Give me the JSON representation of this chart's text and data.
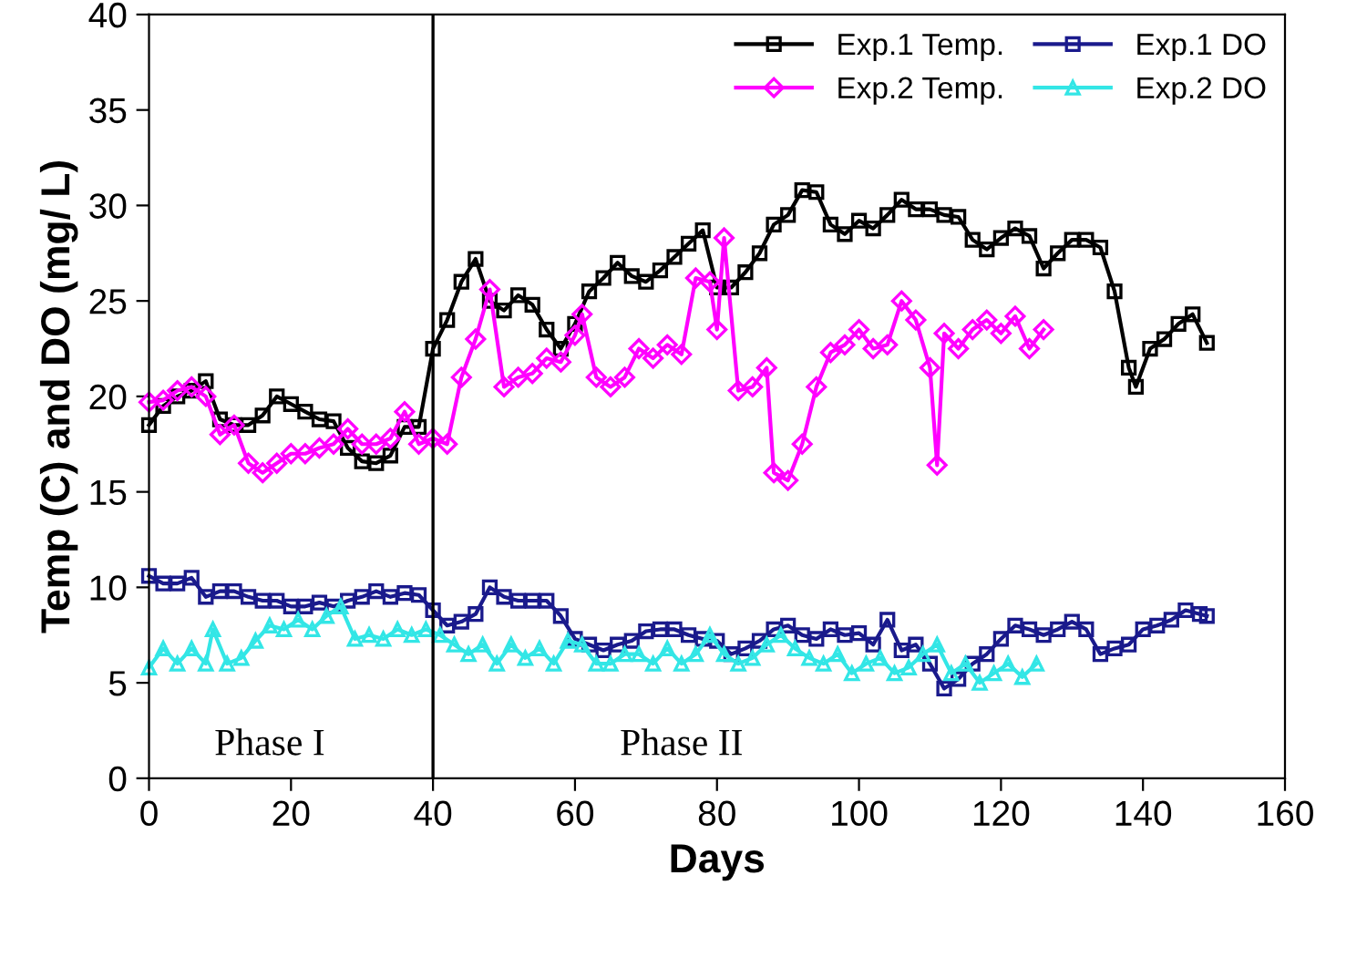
{
  "chart_data": {
    "type": "line",
    "xlabel": "Days",
    "ylabel": "Temp (C) and DO (mg/ L)",
    "xlim": [
      0,
      160
    ],
    "ylim": [
      0,
      40
    ],
    "xticks": [
      0,
      20,
      40,
      60,
      80,
      100,
      120,
      140,
      160
    ],
    "yticks": [
      0,
      5,
      10,
      15,
      20,
      25,
      30,
      35,
      40
    ],
    "grid": false,
    "legend": "top right",
    "ref_lines": [
      {
        "axis": "x",
        "value": 40,
        "color": "#000000"
      }
    ],
    "annotations": [
      "Phase I",
      "Phase II"
    ],
    "series": [
      {
        "name": "Exp.1 Temp.",
        "color": "#000000",
        "marker": "square",
        "x": [
          0,
          2,
          4,
          6,
          8,
          10,
          12,
          14,
          16,
          18,
          20,
          22,
          24,
          26,
          28,
          30,
          32,
          34,
          36,
          38,
          40,
          42,
          44,
          46,
          48,
          50,
          52,
          54,
          56,
          58,
          60,
          62,
          64,
          66,
          68,
          70,
          72,
          74,
          76,
          78,
          80,
          82,
          84,
          86,
          88,
          90,
          92,
          94,
          96,
          98,
          100,
          102,
          104,
          106,
          108,
          110,
          112,
          114,
          116,
          118,
          120,
          122,
          124,
          126,
          128,
          130,
          132,
          134,
          136,
          138,
          139,
          141,
          143,
          145,
          147,
          149
        ],
        "values": [
          18.5,
          19.5,
          20,
          20.3,
          20.8,
          18.8,
          18.5,
          18.5,
          19,
          20,
          19.6,
          19.2,
          18.8,
          18.7,
          17.3,
          16.6,
          16.5,
          16.9,
          18.4,
          18.4,
          22.5,
          24,
          26,
          27.2,
          25,
          24.5,
          25.3,
          24.8,
          23.5,
          22.5,
          23.8,
          25.5,
          26.2,
          27,
          26.3,
          26,
          26.6,
          27.3,
          28,
          28.7,
          25.7,
          25.7,
          26.5,
          27.5,
          29,
          29.5,
          30.8,
          30.7,
          29,
          28.5,
          29.2,
          28.8,
          29.5,
          30.3,
          29.8,
          29.8,
          29.5,
          29.4,
          28.2,
          27.7,
          28.3,
          28.8,
          28.4,
          26.7,
          27.5,
          28.2,
          28.2,
          27.8,
          25.5,
          21.5,
          20.5,
          22.5,
          23,
          23.8,
          24.3,
          22.8
        ]
      },
      {
        "name": "Exp.1 DO",
        "color": "#1a1a8c",
        "marker": "square",
        "x": [
          0,
          2,
          4,
          6,
          8,
          10,
          12,
          14,
          16,
          18,
          20,
          22,
          24,
          26,
          28,
          30,
          32,
          34,
          36,
          38,
          40,
          42,
          44,
          46,
          48,
          50,
          52,
          54,
          56,
          58,
          60,
          62,
          64,
          66,
          68,
          70,
          72,
          74,
          76,
          78,
          80,
          82,
          84,
          86,
          88,
          90,
          92,
          94,
          96,
          98,
          100,
          102,
          104,
          106,
          108,
          110,
          112,
          114,
          116,
          118,
          120,
          122,
          124,
          126,
          128,
          130,
          132,
          134,
          136,
          138,
          140,
          142,
          144,
          146,
          148,
          149
        ],
        "values": [
          10.6,
          10.2,
          10.2,
          10.5,
          9.5,
          9.8,
          9.8,
          9.5,
          9.3,
          9.3,
          9.0,
          9.0,
          9.2,
          9.0,
          9.3,
          9.5,
          9.8,
          9.5,
          9.7,
          9.6,
          8.8,
          8.0,
          8.2,
          8.6,
          10,
          9.5,
          9.3,
          9.3,
          9.3,
          8.5,
          7.3,
          7.0,
          6.7,
          7.0,
          7.2,
          7.7,
          7.8,
          7.8,
          7.5,
          7.3,
          7.2,
          6.5,
          6.8,
          7.2,
          7.8,
          8.0,
          7.5,
          7.3,
          7.8,
          7.5,
          7.6,
          7.0,
          8.3,
          6.7,
          7.0,
          6.0,
          4.7,
          5.2,
          6.0,
          6.5,
          7.3,
          8.0,
          7.8,
          7.5,
          7.8,
          8.2,
          7.8,
          6.5,
          6.8,
          7.0,
          7.8,
          8.0,
          8.3,
          8.8,
          8.6,
          8.5
        ]
      },
      {
        "name": "Exp.2 Temp.",
        "color": "#ff00ff",
        "marker": "diamond",
        "x": [
          0,
          2,
          4,
          6,
          8,
          10,
          12,
          14,
          16,
          18,
          20,
          22,
          24,
          26,
          28,
          30,
          32,
          34,
          36,
          38,
          40,
          42,
          44,
          46,
          48,
          50,
          52,
          54,
          56,
          58,
          60,
          61,
          63,
          65,
          67,
          69,
          71,
          73,
          75,
          77,
          79,
          80,
          81,
          83,
          85,
          87,
          88,
          90,
          92,
          94,
          96,
          98,
          100,
          102,
          104,
          106,
          108,
          110,
          111,
          112,
          114,
          116,
          118,
          120,
          122,
          124,
          126
        ],
        "values": [
          19.7,
          19.8,
          20.3,
          20.5,
          20,
          18,
          18.5,
          16.5,
          16,
          16.5,
          17,
          17,
          17.3,
          17.5,
          18.3,
          17.5,
          17.5,
          17.8,
          19.2,
          17.5,
          17.8,
          17.5,
          21,
          23,
          25.6,
          20.5,
          21,
          21.2,
          22,
          21.8,
          23.2,
          24.3,
          21,
          20.5,
          21,
          22.5,
          22,
          22.7,
          22.2,
          26.2,
          26,
          23.5,
          28.3,
          20.3,
          20.5,
          21.5,
          16,
          15.6,
          17.5,
          20.5,
          22.3,
          22.7,
          23.5,
          22.5,
          22.7,
          25,
          24,
          21.5,
          16.4,
          23.3,
          22.5,
          23.5,
          24,
          23.3,
          24.2,
          22.5,
          23.5
        ]
      },
      {
        "name": "Exp.2 DO",
        "color": "#33e6e6",
        "marker": "triangle",
        "x": [
          0,
          2,
          4,
          6,
          8,
          9,
          11,
          13,
          15,
          17,
          19,
          21,
          23,
          25,
          27,
          29,
          31,
          33,
          35,
          37,
          39,
          41,
          43,
          45,
          47,
          49,
          51,
          53,
          55,
          57,
          59,
          61,
          63,
          65,
          67,
          69,
          71,
          73,
          75,
          77,
          79,
          81,
          83,
          85,
          87,
          89,
          91,
          93,
          95,
          97,
          99,
          101,
          103,
          105,
          107,
          109,
          111,
          113,
          115,
          117,
          119,
          121,
          123,
          125
        ],
        "values": [
          5.8,
          6.8,
          6.0,
          6.8,
          6.0,
          7.8,
          6.0,
          6.3,
          7.2,
          8.0,
          7.8,
          8.3,
          7.8,
          8.5,
          9.0,
          7.3,
          7.5,
          7.3,
          7.8,
          7.5,
          7.8,
          7.5,
          7.0,
          6.5,
          7.0,
          6.0,
          7.0,
          6.3,
          6.8,
          6.0,
          7.2,
          7.0,
          6.0,
          6.0,
          6.5,
          6.5,
          6.0,
          6.8,
          6.0,
          6.5,
          7.5,
          6.5,
          6.0,
          6.3,
          7.0,
          7.5,
          6.8,
          6.3,
          6.0,
          6.5,
          5.5,
          6.0,
          6.3,
          5.5,
          5.8,
          6.5,
          7.0,
          5.5,
          6.0,
          5.0,
          5.5,
          6.0,
          5.3,
          6.0
        ]
      }
    ]
  }
}
